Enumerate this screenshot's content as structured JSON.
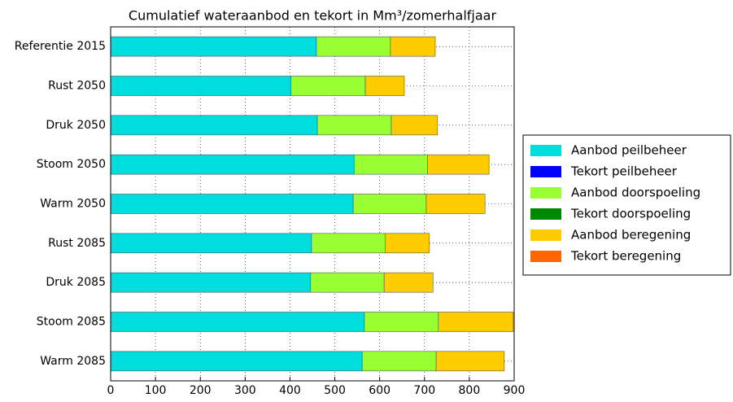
{
  "chart_data": {
    "type": "stacked-barh",
    "title": "Cumulatief wateraanbod en tekort in Mm³/zomerhalfjaar",
    "categories": [
      "Referentie 2015",
      "Rust 2050",
      "Druk 2050",
      "Stoom 2050",
      "Warm 2050",
      "Rust 2085",
      "Druk 2085",
      "Stoom 2085",
      "Warm 2085"
    ],
    "series": [
      {
        "name": "Aanbod peilbeheer",
        "color": "#00dddd",
        "values": [
          459,
          402,
          461,
          543,
          541,
          448,
          446,
          566,
          561
        ]
      },
      {
        "name": "Tekort peilbeheer",
        "color": "#0000ff",
        "values": [
          0,
          0,
          0,
          0,
          0,
          0,
          0,
          0,
          0
        ]
      },
      {
        "name": "Aanbod doorspoeling",
        "color": "#99ff33",
        "values": [
          165,
          166,
          165,
          164,
          163,
          164,
          164,
          165,
          165
        ]
      },
      {
        "name": "Tekort doorspoeling",
        "color": "#008800",
        "values": [
          0,
          0,
          0,
          0,
          0,
          0,
          0,
          0,
          0
        ]
      },
      {
        "name": "Aanbod beregening",
        "color": "#ffcc00",
        "values": [
          100,
          87,
          103,
          137,
          131,
          99,
          109,
          167,
          152
        ]
      },
      {
        "name": "Tekort beregening",
        "color": "#ff6600",
        "values": [
          0,
          0,
          0,
          0,
          0,
          0,
          0,
          0,
          0
        ]
      }
    ],
    "xlim": [
      0,
      900
    ],
    "xticks": [
      0,
      100,
      200,
      300,
      400,
      500,
      600,
      700,
      800,
      900
    ],
    "grid": true,
    "legend": "right"
  }
}
